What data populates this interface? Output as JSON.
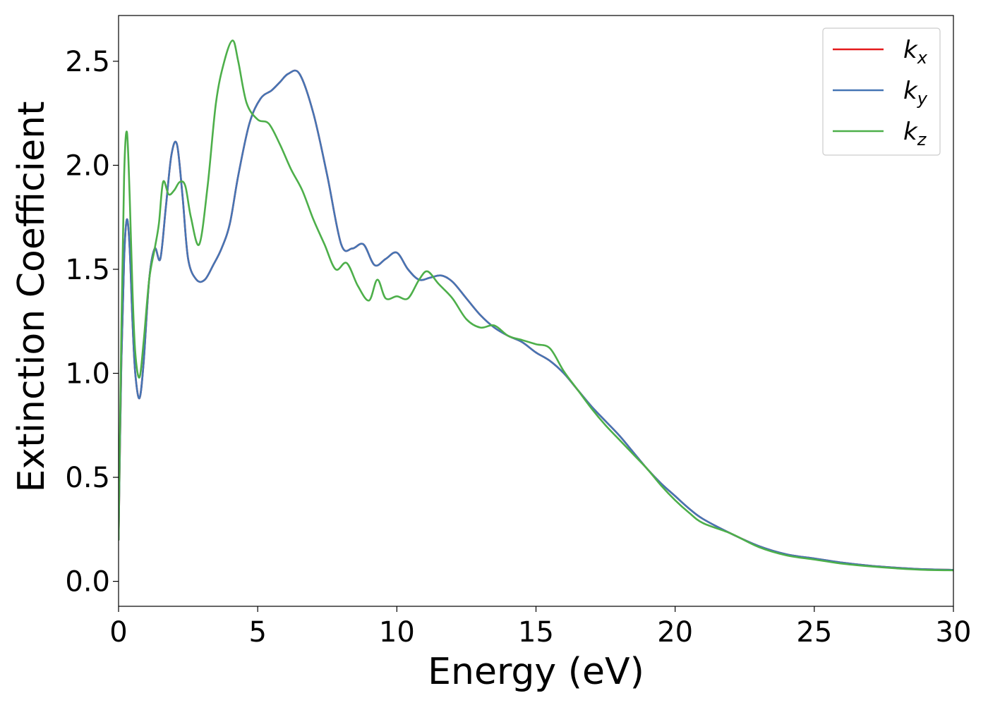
{
  "chart_data": {
    "type": "line",
    "xlabel": "Energy (eV)",
    "ylabel": "Extinction Coefficient",
    "xlim": [
      0,
      30
    ],
    "ylim": [
      -0.12,
      2.72
    ],
    "xticks": [
      0,
      5,
      10,
      15,
      20,
      25,
      30
    ],
    "xtick_labels": [
      "0",
      "5",
      "10",
      "15",
      "20",
      "25",
      "30"
    ],
    "yticks": [
      0.0,
      0.5,
      1.0,
      1.5,
      2.0,
      2.5
    ],
    "ytick_labels": [
      "0.0",
      "0.5",
      "1.0",
      "1.5",
      "2.0",
      "2.5"
    ],
    "grid": false,
    "legend_position": "top-right",
    "series": [
      {
        "name": "k_x",
        "label_main": "k",
        "label_sub": "x",
        "color": "#e41a1c",
        "x": [
          0,
          0.1,
          0.2,
          0.3,
          0.4,
          0.5,
          0.6,
          0.75,
          0.9,
          1.1,
          1.3,
          1.5,
          1.7,
          1.9,
          2.1,
          2.3,
          2.5,
          2.8,
          3.1,
          3.4,
          3.7,
          4.0,
          4.3,
          4.7,
          5.1,
          5.5,
          5.8,
          6.1,
          6.5,
          7.0,
          7.5,
          8.0,
          8.4,
          8.8,
          9.2,
          9.6,
          10.0,
          10.4,
          10.8,
          11.2,
          11.6,
          12.0,
          12.5,
          13.0,
          13.5,
          14.0,
          14.5,
          15.0,
          15.5,
          16.0,
          16.5,
          17.0,
          17.5,
          18.0,
          18.5,
          19.0,
          19.5,
          20.0,
          20.5,
          21.0,
          22.0,
          23.0,
          24.0,
          25.0,
          26.0,
          27.0,
          28.0,
          29.0,
          30.0
        ],
        "values": [
          0.2,
          1.05,
          1.55,
          1.74,
          1.6,
          1.25,
          1.0,
          0.88,
          1.05,
          1.45,
          1.6,
          1.55,
          1.8,
          2.05,
          2.1,
          1.85,
          1.55,
          1.45,
          1.45,
          1.52,
          1.6,
          1.72,
          1.95,
          2.2,
          2.32,
          2.36,
          2.4,
          2.44,
          2.44,
          2.25,
          1.95,
          1.62,
          1.6,
          1.62,
          1.52,
          1.55,
          1.58,
          1.5,
          1.45,
          1.46,
          1.47,
          1.44,
          1.36,
          1.28,
          1.22,
          1.18,
          1.15,
          1.1,
          1.06,
          1.0,
          0.92,
          0.84,
          0.77,
          0.7,
          0.62,
          0.54,
          0.47,
          0.41,
          0.35,
          0.3,
          0.23,
          0.17,
          0.13,
          0.11,
          0.09,
          0.075,
          0.065,
          0.058,
          0.055
        ]
      },
      {
        "name": "k_y",
        "label_main": "k",
        "label_sub": "y",
        "color": "#4575b4",
        "x": [
          0,
          0.1,
          0.2,
          0.3,
          0.4,
          0.5,
          0.6,
          0.75,
          0.9,
          1.1,
          1.3,
          1.5,
          1.7,
          1.9,
          2.1,
          2.3,
          2.5,
          2.8,
          3.1,
          3.4,
          3.7,
          4.0,
          4.3,
          4.7,
          5.1,
          5.5,
          5.8,
          6.1,
          6.5,
          7.0,
          7.5,
          8.0,
          8.4,
          8.8,
          9.2,
          9.6,
          10.0,
          10.4,
          10.8,
          11.2,
          11.6,
          12.0,
          12.5,
          13.0,
          13.5,
          14.0,
          14.5,
          15.0,
          15.5,
          16.0,
          16.5,
          17.0,
          17.5,
          18.0,
          18.5,
          19.0,
          19.5,
          20.0,
          20.5,
          21.0,
          22.0,
          23.0,
          24.0,
          25.0,
          26.0,
          27.0,
          28.0,
          29.0,
          30.0
        ],
        "values": [
          0.2,
          1.05,
          1.55,
          1.74,
          1.6,
          1.25,
          1.0,
          0.88,
          1.05,
          1.45,
          1.6,
          1.55,
          1.8,
          2.05,
          2.1,
          1.85,
          1.55,
          1.45,
          1.45,
          1.52,
          1.6,
          1.72,
          1.95,
          2.2,
          2.32,
          2.36,
          2.4,
          2.44,
          2.44,
          2.25,
          1.95,
          1.62,
          1.6,
          1.62,
          1.52,
          1.55,
          1.58,
          1.5,
          1.45,
          1.46,
          1.47,
          1.44,
          1.36,
          1.28,
          1.22,
          1.18,
          1.15,
          1.1,
          1.06,
          1.0,
          0.92,
          0.84,
          0.77,
          0.7,
          0.62,
          0.54,
          0.47,
          0.41,
          0.35,
          0.3,
          0.23,
          0.17,
          0.13,
          0.11,
          0.09,
          0.075,
          0.065,
          0.058,
          0.055
        ]
      },
      {
        "name": "k_z",
        "label_main": "k",
        "label_sub": "z",
        "color": "#4daf4a",
        "x": [
          0,
          0.1,
          0.2,
          0.3,
          0.4,
          0.5,
          0.6,
          0.75,
          0.9,
          1.1,
          1.3,
          1.45,
          1.6,
          1.8,
          2.0,
          2.2,
          2.4,
          2.6,
          2.9,
          3.2,
          3.5,
          3.8,
          4.1,
          4.3,
          4.6,
          5.0,
          5.4,
          5.8,
          6.2,
          6.6,
          7.0,
          7.4,
          7.8,
          8.2,
          8.6,
          9.0,
          9.3,
          9.6,
          10.0,
          10.4,
          10.8,
          11.1,
          11.5,
          12.0,
          12.5,
          13.0,
          13.5,
          14.0,
          14.5,
          15.0,
          15.5,
          16.0,
          16.5,
          17.0,
          17.5,
          18.0,
          18.5,
          19.0,
          19.5,
          20.0,
          20.5,
          21.0,
          22.0,
          23.0,
          24.0,
          25.0,
          26.0,
          27.0,
          28.0,
          29.0,
          30.0
        ],
        "values": [
          0.2,
          1.2,
          1.95,
          2.16,
          1.85,
          1.4,
          1.1,
          0.98,
          1.15,
          1.45,
          1.6,
          1.72,
          1.92,
          1.86,
          1.88,
          1.92,
          1.9,
          1.75,
          1.62,
          1.9,
          2.3,
          2.5,
          2.6,
          2.5,
          2.3,
          2.22,
          2.2,
          2.1,
          1.98,
          1.88,
          1.74,
          1.62,
          1.5,
          1.53,
          1.42,
          1.35,
          1.45,
          1.36,
          1.37,
          1.36,
          1.45,
          1.49,
          1.43,
          1.36,
          1.26,
          1.22,
          1.23,
          1.18,
          1.16,
          1.14,
          1.12,
          1.01,
          0.92,
          0.83,
          0.75,
          0.68,
          0.61,
          0.54,
          0.46,
          0.39,
          0.33,
          0.28,
          0.23,
          0.165,
          0.125,
          0.105,
          0.085,
          0.072,
          0.062,
          0.055,
          0.053
        ]
      }
    ]
  }
}
